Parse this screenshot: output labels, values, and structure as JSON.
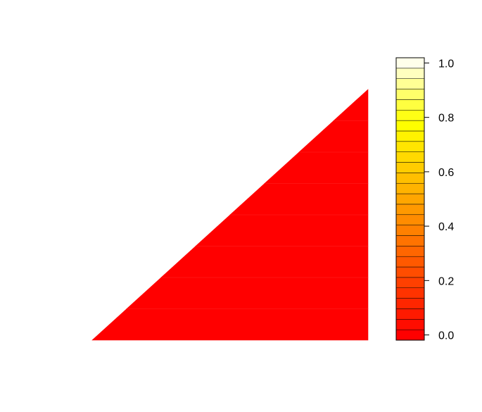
{
  "chart_data": {
    "type": "heatmap",
    "title": "",
    "xlabel": "",
    "ylabel": "",
    "axes_shown": false,
    "grid": false,
    "value_range": [
      0,
      1
    ],
    "cells": [
      {
        "band": 1,
        "value": 0
      },
      {
        "band": 2,
        "value": 0
      },
      {
        "band": 3,
        "value": 0
      },
      {
        "band": 4,
        "value": 0
      },
      {
        "band": 5,
        "value": 0
      },
      {
        "band": 6,
        "value": 0
      },
      {
        "band": 7,
        "value": 0
      },
      {
        "band": 8,
        "value": 0
      }
    ],
    "colorbar": {
      "placement": "right",
      "min": 0,
      "max": 1,
      "ticks": [
        "0.0",
        "0.2",
        "0.4",
        "0.6",
        "0.8",
        "1.0"
      ],
      "tick_values": [
        0,
        0.2,
        0.4,
        0.6,
        0.8,
        1.0
      ],
      "colors": [
        "#FF0000",
        "#FF0D00",
        "#FF1A00",
        "#FF2600",
        "#FF3300",
        "#FF4000",
        "#FF4D00",
        "#FF5900",
        "#FF6600",
        "#FF7300",
        "#FF8000",
        "#FF8C00",
        "#FF9900",
        "#FFA600",
        "#FFB300",
        "#FFBF00",
        "#FFCC00",
        "#FFD900",
        "#FFE500",
        "#FFF200",
        "#FFFF00",
        "#FFFF15",
        "#FFFF40",
        "#FFFF6A",
        "#FFFF95",
        "#FFFFBF",
        "#FFFFEA"
      ]
    }
  }
}
